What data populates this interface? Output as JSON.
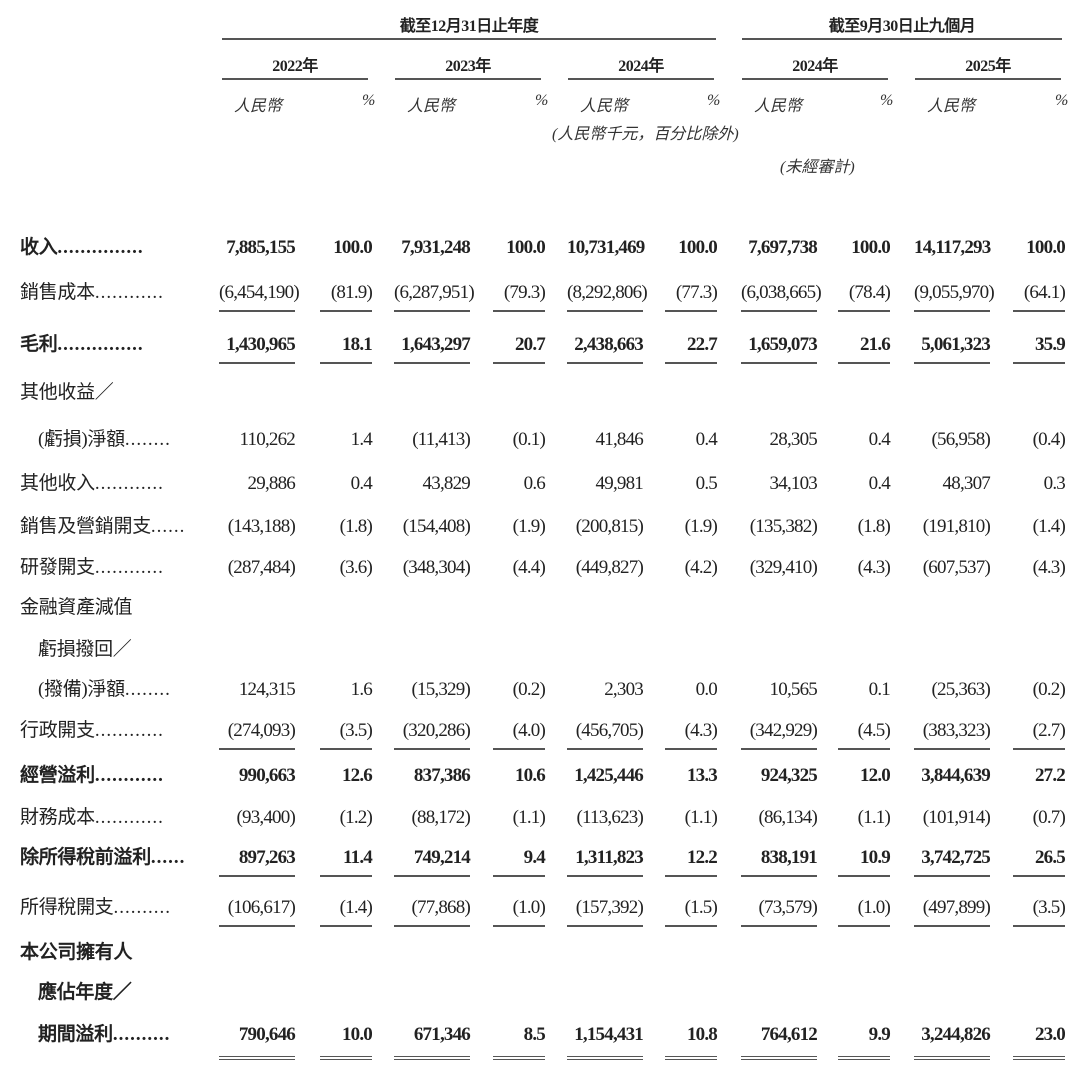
{
  "header": {
    "group_fy": "截至12月31日止年度",
    "group_9m": "截至9月30日止九個月",
    "years": [
      "2022年",
      "2023年",
      "2024年",
      "2024年",
      "2025年"
    ],
    "currency_label": "人民幣",
    "pct_label": "%",
    "unit_note": "(人民幣千元，百分比除外)",
    "unaudited_note": "(未經審計)"
  },
  "rows": [
    {
      "label": "收入",
      "dots": "...............",
      "bold": true,
      "values": [
        "7,885,155",
        "100.0",
        "7,931,248",
        "100.0",
        "10,731,469",
        "100.0",
        "7,697,738",
        "100.0",
        "14,117,293",
        "100.0"
      ]
    },
    {
      "label": "銷售成本",
      "dots": "............",
      "underline": "single",
      "values": [
        "(6,454,190)",
        "(81.9)",
        "(6,287,951)",
        "(79.3)",
        "(8,292,806)",
        "(77.3)",
        "(6,038,665)",
        "(78.4)",
        "(9,055,970)",
        "(64.1)"
      ]
    },
    {
      "label": "毛利",
      "dots": "...............",
      "bold": true,
      "underline": "single",
      "values": [
        "1,430,965",
        "18.1",
        "1,643,297",
        "20.7",
        "2,438,663",
        "22.7",
        "1,659,073",
        "21.6",
        "5,061,323",
        "35.9"
      ]
    },
    {
      "label": "其他收益／",
      "dots": "",
      "values": []
    },
    {
      "label": "(虧損)淨額",
      "dots": "........",
      "indent": true,
      "values": [
        "110,262",
        "1.4",
        "(11,413)",
        "(0.1)",
        "41,846",
        "0.4",
        "28,305",
        "0.4",
        "(56,958)",
        "(0.4)"
      ]
    },
    {
      "label": "其他收入",
      "dots": "............",
      "values": [
        "29,886",
        "0.4",
        "43,829",
        "0.6",
        "49,981",
        "0.5",
        "34,103",
        "0.4",
        "48,307",
        "0.3"
      ]
    },
    {
      "label": "銷售及營銷開支",
      "dots": "......",
      "values": [
        "(143,188)",
        "(1.8)",
        "(154,408)",
        "(1.9)",
        "(200,815)",
        "(1.9)",
        "(135,382)",
        "(1.8)",
        "(191,810)",
        "(1.4)"
      ]
    },
    {
      "label": "研發開支",
      "dots": "............",
      "values": [
        "(287,484)",
        "(3.6)",
        "(348,304)",
        "(4.4)",
        "(449,827)",
        "(4.2)",
        "(329,410)",
        "(4.3)",
        "(607,537)",
        "(4.3)"
      ]
    },
    {
      "label": "金融資產減值",
      "dots": "",
      "values": []
    },
    {
      "label": "虧損撥回／",
      "dots": "",
      "indent": true,
      "values": []
    },
    {
      "label": "(撥備)淨額",
      "dots": "........",
      "indent": true,
      "values": [
        "124,315",
        "1.6",
        "(15,329)",
        "(0.2)",
        "2,303",
        "0.0",
        "10,565",
        "0.1",
        "(25,363)",
        "(0.2)"
      ]
    },
    {
      "label": "行政開支",
      "dots": "............",
      "underline": "single",
      "values": [
        "(274,093)",
        "(3.5)",
        "(320,286)",
        "(4.0)",
        "(456,705)",
        "(4.3)",
        "(342,929)",
        "(4.5)",
        "(383,323)",
        "(2.7)"
      ]
    },
    {
      "label": "經營溢利",
      "dots": "............",
      "bold": true,
      "values": [
        "990,663",
        "12.6",
        "837,386",
        "10.6",
        "1,425,446",
        "13.3",
        "924,325",
        "12.0",
        "3,844,639",
        "27.2"
      ]
    },
    {
      "label": "財務成本",
      "dots": "............",
      "values": [
        "(93,400)",
        "(1.2)",
        "(88,172)",
        "(1.1)",
        "(113,623)",
        "(1.1)",
        "(86,134)",
        "(1.1)",
        "(101,914)",
        "(0.7)"
      ]
    },
    {
      "label": "除所得稅前溢利",
      "dots": "......",
      "bold": true,
      "underline": "single",
      "values": [
        "897,263",
        "11.4",
        "749,214",
        "9.4",
        "1,311,823",
        "12.2",
        "838,191",
        "10.9",
        "3,742,725",
        "26.5"
      ]
    },
    {
      "label": "所得稅開支",
      "dots": "..........",
      "underline": "single",
      "values": [
        "(106,617)",
        "(1.4)",
        "(77,868)",
        "(1.0)",
        "(157,392)",
        "(1.5)",
        "(73,579)",
        "(1.0)",
        "(497,899)",
        "(3.5)"
      ]
    },
    {
      "label": "本公司擁有人",
      "dots": "",
      "bold": true,
      "values": []
    },
    {
      "label": "應佔年度／",
      "dots": "",
      "bold": true,
      "indent": true,
      "values": []
    },
    {
      "label": "期間溢利",
      "dots": "..........",
      "bold": true,
      "indent": true,
      "underline": "double",
      "values": [
        "790,646",
        "10.0",
        "671,346",
        "8.5",
        "1,154,431",
        "10.8",
        "764,612",
        "9.9",
        "3,244,826",
        "23.0"
      ]
    }
  ]
}
